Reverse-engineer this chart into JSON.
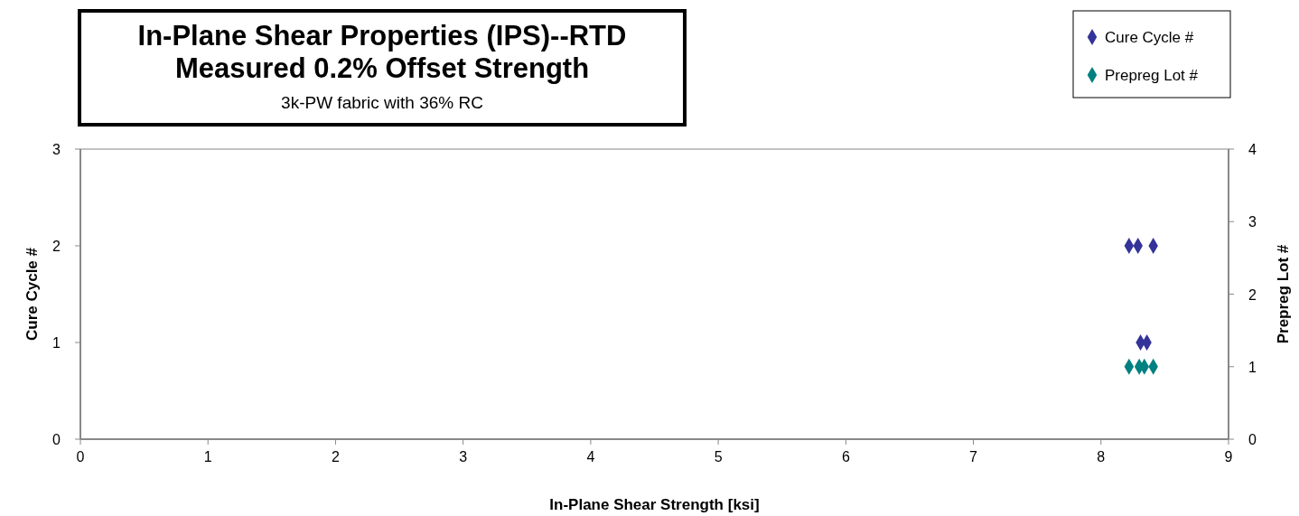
{
  "chart_data": {
    "type": "scatter",
    "title": "In-Plane Shear Properties (IPS)--RTD\nMeasured 0.2% Offset Strength",
    "subtitle": "3k-PW fabric with 36% RC",
    "xlabel": "In-Plane  Shear Strength [ksi]",
    "ylabel": "Cure Cycle #",
    "y2label": "Prepreg Lot #",
    "xlim": [
      0,
      9
    ],
    "xticks": [
      0,
      1,
      2,
      3,
      4,
      5,
      6,
      7,
      8,
      9
    ],
    "ylim": [
      0,
      3
    ],
    "yticks": [
      0,
      1,
      2,
      3
    ],
    "y2lim": [
      0,
      4
    ],
    "y2ticks": [
      0,
      1,
      2,
      3,
      4
    ],
    "marker": "diamond",
    "legend": "top right",
    "grid": false,
    "series": [
      {
        "name": "Cure Cycle #",
        "color": "#333399",
        "x": [
          8.22,
          8.29,
          8.41,
          8.31,
          8.36
        ],
        "values": [
          2,
          2,
          2,
          1,
          1
        ]
      },
      {
        "name": "Prepreg Lot #",
        "color": "#008080",
        "axis": "y2",
        "x": [
          8.22,
          8.3,
          8.34,
          8.41
        ],
        "values": [
          1,
          1,
          1,
          1
        ]
      }
    ]
  }
}
